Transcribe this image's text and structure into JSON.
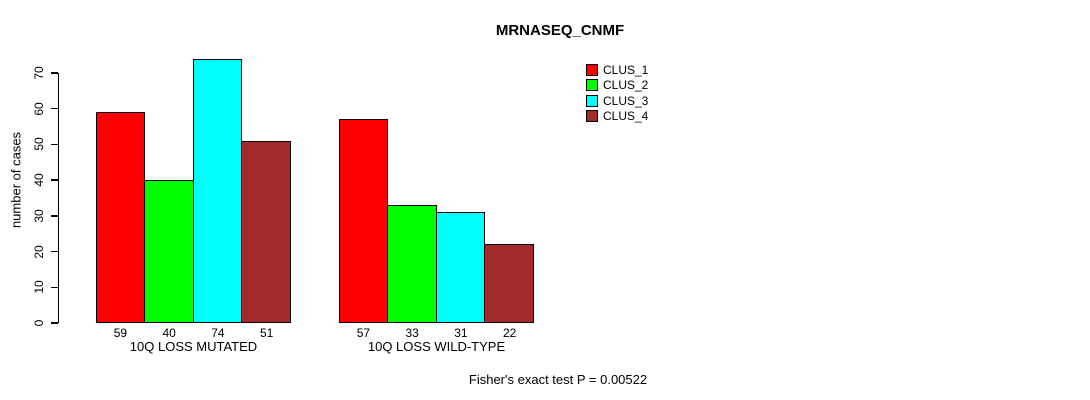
{
  "chart_data": {
    "type": "bar",
    "title": "MRNASEQ_CNMF",
    "ylabel": "number of cases",
    "xlabel": "",
    "ylim": [
      0,
      70
    ],
    "yticks": [
      0,
      10,
      20,
      30,
      40,
      50,
      60,
      70
    ],
    "categories": [
      "10Q LOSS MUTATED",
      "10Q LOSS WILD-TYPE"
    ],
    "series": [
      {
        "name": "CLUS_1",
        "color": "#ff0000",
        "values": [
          59,
          57
        ]
      },
      {
        "name": "CLUS_2",
        "color": "#00ff00",
        "values": [
          40,
          33
        ]
      },
      {
        "name": "CLUS_3",
        "color": "#00ffff",
        "values": [
          74,
          31
        ]
      },
      {
        "name": "CLUS_4",
        "color": "#a52a2a",
        "values": [
          51,
          22
        ]
      }
    ],
    "bar_value_labels": [
      [
        59,
        40,
        74,
        51
      ],
      [
        57,
        33,
        31,
        22
      ]
    ],
    "legend_position": "top-right",
    "grid": false,
    "bar_border_color": "#000000",
    "background_color": "#ffffff",
    "annotation": "Fisher's exact test P = 0.00522"
  }
}
